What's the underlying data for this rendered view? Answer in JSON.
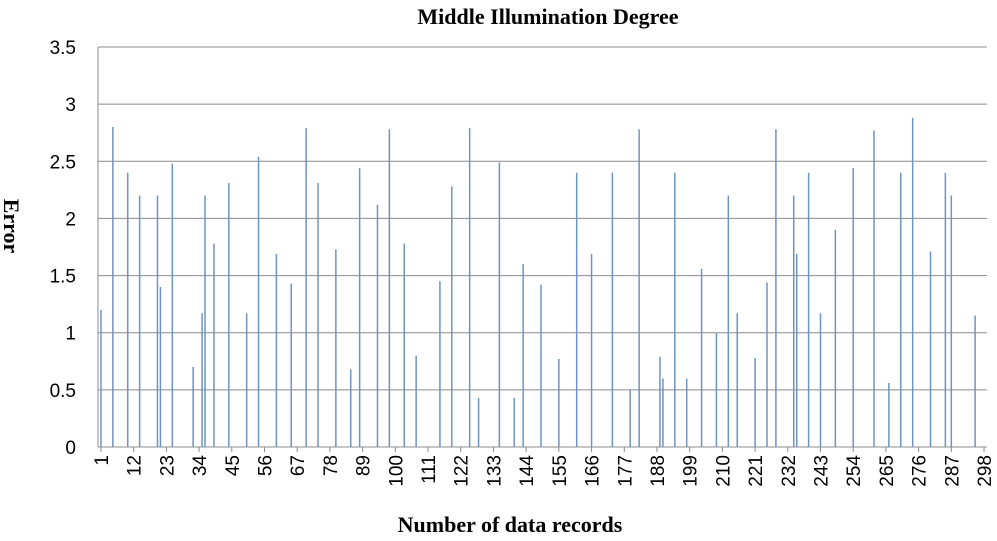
{
  "chart_data": {
    "type": "bar",
    "title": "Middle Illumination Degree",
    "x_label": "Number of data records",
    "y_label": "Error",
    "x": [
      1,
      5,
      10,
      14,
      20,
      21,
      25,
      32,
      35,
      36,
      39,
      44,
      50,
      54,
      60,
      65,
      70,
      74,
      80,
      85,
      88,
      94,
      98,
      103,
      107,
      115,
      119,
      125,
      128,
      135,
      140,
      143,
      149,
      155,
      161,
      166,
      173,
      179,
      182,
      189,
      190,
      194,
      198,
      203,
      208,
      212,
      215,
      221,
      225,
      228,
      234,
      235,
      239,
      243,
      248,
      254,
      261,
      266,
      270,
      274,
      280,
      285,
      287,
      295
    ],
    "values": [
      1.2,
      2.8,
      2.4,
      2.2,
      2.2,
      1.4,
      2.48,
      0.7,
      1.17,
      2.2,
      1.78,
      2.31,
      1.17,
      2.54,
      1.69,
      1.43,
      2.79,
      2.31,
      1.73,
      0.68,
      2.44,
      2.12,
      2.78,
      1.78,
      0.8,
      1.45,
      2.28,
      2.79,
      0.43,
      2.49,
      0.43,
      1.6,
      1.42,
      0.77,
      2.4,
      1.69,
      2.4,
      0.5,
      2.78,
      0.79,
      0.6,
      2.4,
      0.6,
      1.56,
      1.0,
      2.2,
      1.17,
      0.78,
      1.44,
      2.78,
      2.2,
      1.69,
      2.4,
      1.17,
      1.9,
      2.44,
      2.77,
      0.56,
      2.4,
      2.88,
      1.71,
      2.4,
      2.2,
      1.15
    ],
    "color": "#6f93c3",
    "xlim": [
      0,
      299
    ],
    "xticks": [
      1,
      12,
      23,
      34,
      45,
      56,
      67,
      78,
      89,
      100,
      111,
      122,
      133,
      144,
      155,
      166,
      177,
      188,
      199,
      210,
      221,
      232,
      243,
      254,
      265,
      276,
      287,
      298
    ],
    "ylim": [
      0,
      3.5
    ],
    "yticks": [
      0,
      0.5,
      1,
      1.5,
      2,
      2.5,
      3,
      3.5
    ],
    "grid": true
  }
}
